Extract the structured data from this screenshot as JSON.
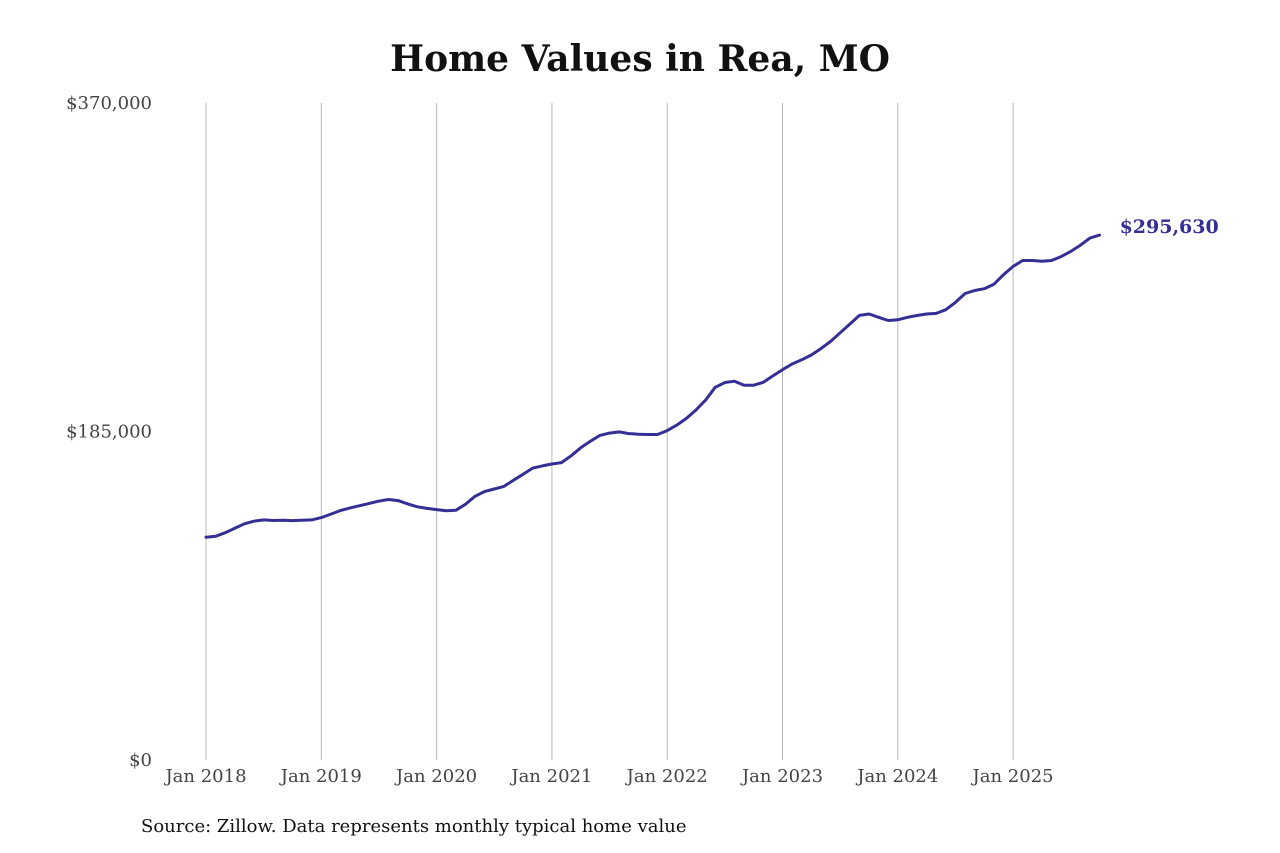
{
  "chart_data": {
    "type": "line",
    "title": "Home Values in Rea, MO",
    "source": "Source: Zillow. Data represents monthly typical home value",
    "ylim": [
      0,
      370000
    ],
    "y_ticks": [
      {
        "value": 0,
        "label": "$0"
      },
      {
        "value": 185000,
        "label": "$185,000"
      },
      {
        "value": 370000,
        "label": "$370,000"
      }
    ],
    "x_range": [
      "2018-01",
      "2025-10"
    ],
    "x_ticks": [
      {
        "date": "2018-01",
        "label": "Jan 2018"
      },
      {
        "date": "2019-01",
        "label": "Jan 2019"
      },
      {
        "date": "2020-01",
        "label": "Jan 2020"
      },
      {
        "date": "2021-01",
        "label": "Jan 2021"
      },
      {
        "date": "2022-01",
        "label": "Jan 2022"
      },
      {
        "date": "2023-01",
        "label": "Jan 2023"
      },
      {
        "date": "2024-01",
        "label": "Jan 2024"
      },
      {
        "date": "2025-01",
        "label": "Jan 2025"
      }
    ],
    "grid": {
      "vertical": true,
      "horizontal": false
    },
    "line_color": "#352f95",
    "end_label": "$295,630",
    "series": [
      {
        "x": [
          "2018-01",
          "2018-02",
          "2018-03",
          "2018-04",
          "2018-05",
          "2018-06",
          "2018-07",
          "2018-08",
          "2018-09",
          "2018-10",
          "2018-11",
          "2018-12",
          "2019-01",
          "2019-02",
          "2019-03",
          "2019-04",
          "2019-05",
          "2019-06",
          "2019-07",
          "2019-08",
          "2019-09",
          "2019-10",
          "2019-11",
          "2019-12",
          "2020-01",
          "2020-02",
          "2020-03",
          "2020-04",
          "2020-05",
          "2020-06",
          "2020-07",
          "2020-08",
          "2020-09",
          "2020-10",
          "2020-11",
          "2020-12",
          "2021-01",
          "2021-02",
          "2021-03",
          "2021-04",
          "2021-05",
          "2021-06",
          "2021-07",
          "2021-08",
          "2021-09",
          "2021-10",
          "2021-11",
          "2021-12",
          "2022-01",
          "2022-02",
          "2022-03",
          "2022-04",
          "2022-05",
          "2022-06",
          "2022-07",
          "2022-08",
          "2022-09",
          "2022-10",
          "2022-11",
          "2022-12",
          "2023-01",
          "2023-02",
          "2023-03",
          "2023-04",
          "2023-05",
          "2023-06",
          "2023-07",
          "2023-08",
          "2023-09",
          "2023-10",
          "2023-11",
          "2023-12",
          "2024-01",
          "2024-02",
          "2024-03",
          "2024-04",
          "2024-05",
          "2024-06",
          "2024-07",
          "2024-08",
          "2024-09",
          "2024-10",
          "2024-11",
          "2024-12",
          "2025-01",
          "2025-02",
          "2025-03",
          "2025-04",
          "2025-05",
          "2025-06",
          "2025-07",
          "2025-08",
          "2025-09",
          "2025-10"
        ],
        "values": [
          125500,
          126000,
          128000,
          130500,
          133000,
          134500,
          135200,
          134900,
          135000,
          134800,
          135000,
          135200,
          136500,
          138500,
          140500,
          142000,
          143200,
          144500,
          145800,
          146700,
          146100,
          144200,
          142600,
          141700,
          141000,
          140400,
          140600,
          144000,
          148500,
          151200,
          152600,
          154100,
          157600,
          160900,
          164400,
          165600,
          166700,
          167500,
          171300,
          175800,
          179500,
          182800,
          184100,
          184800,
          183800,
          183500,
          183300,
          183300,
          185500,
          188600,
          192400,
          197100,
          202700,
          209900,
          212600,
          213300,
          211100,
          211100,
          212700,
          216300,
          219800,
          223000,
          225400,
          228100,
          231700,
          235700,
          240600,
          245500,
          250400,
          251200,
          249300,
          247500,
          247900,
          249300,
          250300,
          251200,
          251500,
          253600,
          257700,
          262700,
          264400,
          265400,
          267900,
          273300,
          278000,
          281300,
          281300,
          280900,
          281300,
          283500,
          286400,
          289900,
          294000,
          295630
        ]
      }
    ]
  }
}
